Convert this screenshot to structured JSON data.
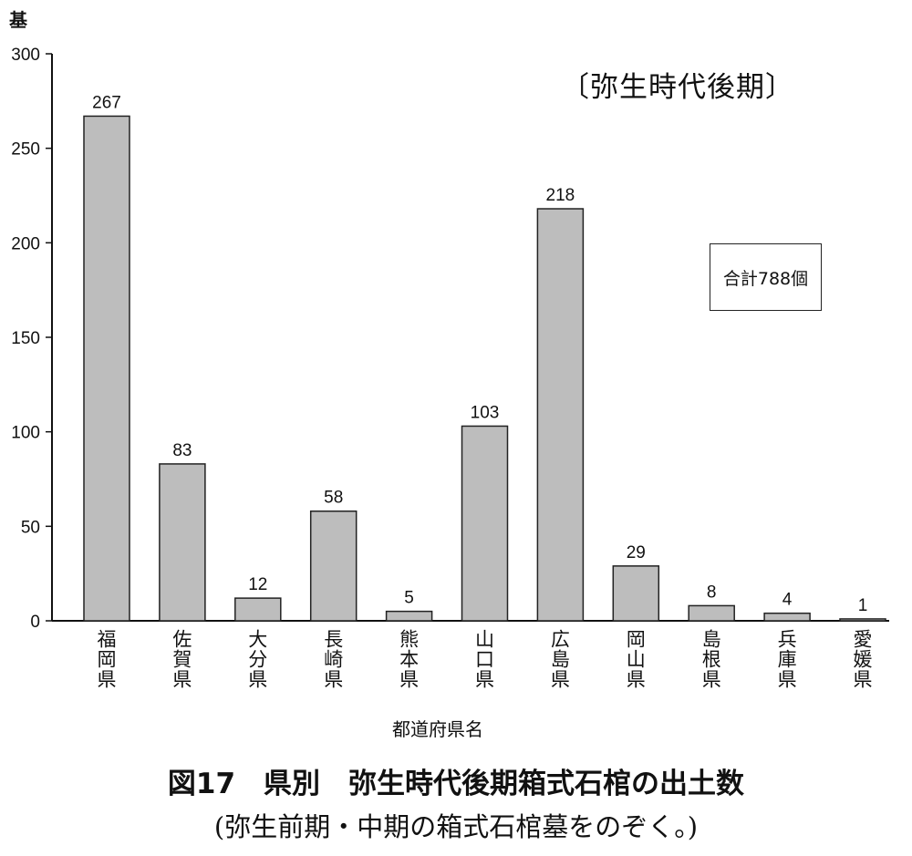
{
  "chart_data": {
    "type": "bar",
    "title": "図17　県別　弥生時代後期箱式石棺の出土数",
    "subtitle": "(弥生前期・中期の箱式石棺墓をのぞく。)",
    "annotation_period": "〔弥生時代後期〕",
    "annotation_total": "合計788個",
    "xlabel": "都道府県名",
    "ylabel": "基",
    "ylim": [
      0,
      300
    ],
    "yticks": [
      0,
      50,
      100,
      150,
      200,
      250,
      300
    ],
    "categories": [
      "福岡県",
      "佐賀県",
      "大分県",
      "長崎県",
      "熊本県",
      "山口県",
      "広島県",
      "岡山県",
      "島根県",
      "兵庫県",
      "愛媛県"
    ],
    "values": [
      267,
      83,
      12,
      58,
      5,
      103,
      218,
      29,
      8,
      4,
      1
    ],
    "data_labels": true,
    "grid": false,
    "bar_color": "#bdbdbd"
  }
}
